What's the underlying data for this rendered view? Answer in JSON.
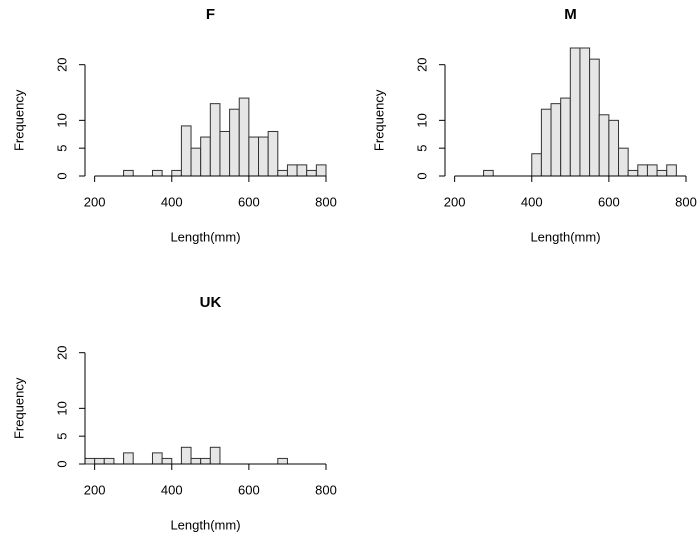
{
  "chart_data": [
    {
      "type": "histogram",
      "title": "F",
      "xlabel": "Length(mm)",
      "ylabel": "Frequency",
      "bins": [
        175,
        200,
        225,
        250,
        275,
        300,
        325,
        350,
        375,
        400,
        425,
        450,
        475,
        500,
        525,
        550,
        575,
        600,
        625,
        650,
        675,
        700,
        725,
        750,
        775,
        800
      ],
      "values": [
        0,
        0,
        0,
        0,
        1,
        0,
        0,
        1,
        0,
        1,
        9,
        5,
        7,
        13,
        8,
        12,
        14,
        7,
        7,
        8,
        1,
        2,
        2,
        1,
        2
      ],
      "xlim": [
        175,
        800
      ],
      "ylim": [
        0,
        23
      ],
      "xticks": [
        200,
        400,
        600,
        800
      ],
      "yticks": [
        0,
        5,
        10,
        20
      ],
      "color": "#e6e6e6"
    },
    {
      "type": "histogram",
      "title": "M",
      "xlabel": "Length(mm)",
      "ylabel": "Frequency",
      "bins": [
        175,
        200,
        225,
        250,
        275,
        300,
        325,
        350,
        375,
        400,
        425,
        450,
        475,
        500,
        525,
        550,
        575,
        600,
        625,
        650,
        675,
        700,
        725,
        750,
        775,
        800
      ],
      "values": [
        0,
        0,
        0,
        0,
        1,
        0,
        0,
        0,
        0,
        4,
        12,
        13,
        14,
        23,
        23,
        21,
        11,
        10,
        5,
        1,
        2,
        2,
        1,
        2,
        0
      ],
      "xlim": [
        175,
        800
      ],
      "ylim": [
        0,
        23
      ],
      "xticks": [
        200,
        400,
        600,
        800
      ],
      "yticks": [
        0,
        5,
        10,
        20
      ],
      "color": "#e6e6e6"
    },
    {
      "type": "histogram",
      "title": "UK",
      "xlabel": "Length(mm)",
      "ylabel": "Frequency",
      "bins": [
        175,
        200,
        225,
        250,
        275,
        300,
        325,
        350,
        375,
        400,
        425,
        450,
        475,
        500,
        525,
        550,
        575,
        600,
        625,
        650,
        675,
        700,
        725,
        750,
        775,
        800
      ],
      "values": [
        1,
        1,
        1,
        0,
        2,
        0,
        0,
        2,
        1,
        0,
        3,
        1,
        1,
        3,
        0,
        0,
        0,
        0,
        0,
        0,
        1,
        0,
        0,
        0,
        0
      ],
      "xlim": [
        175,
        800
      ],
      "ylim": [
        0,
        23
      ],
      "xticks": [
        200,
        400,
        600,
        800
      ],
      "yticks": [
        0,
        5,
        10,
        20
      ],
      "color": "#e6e6e6"
    }
  ]
}
